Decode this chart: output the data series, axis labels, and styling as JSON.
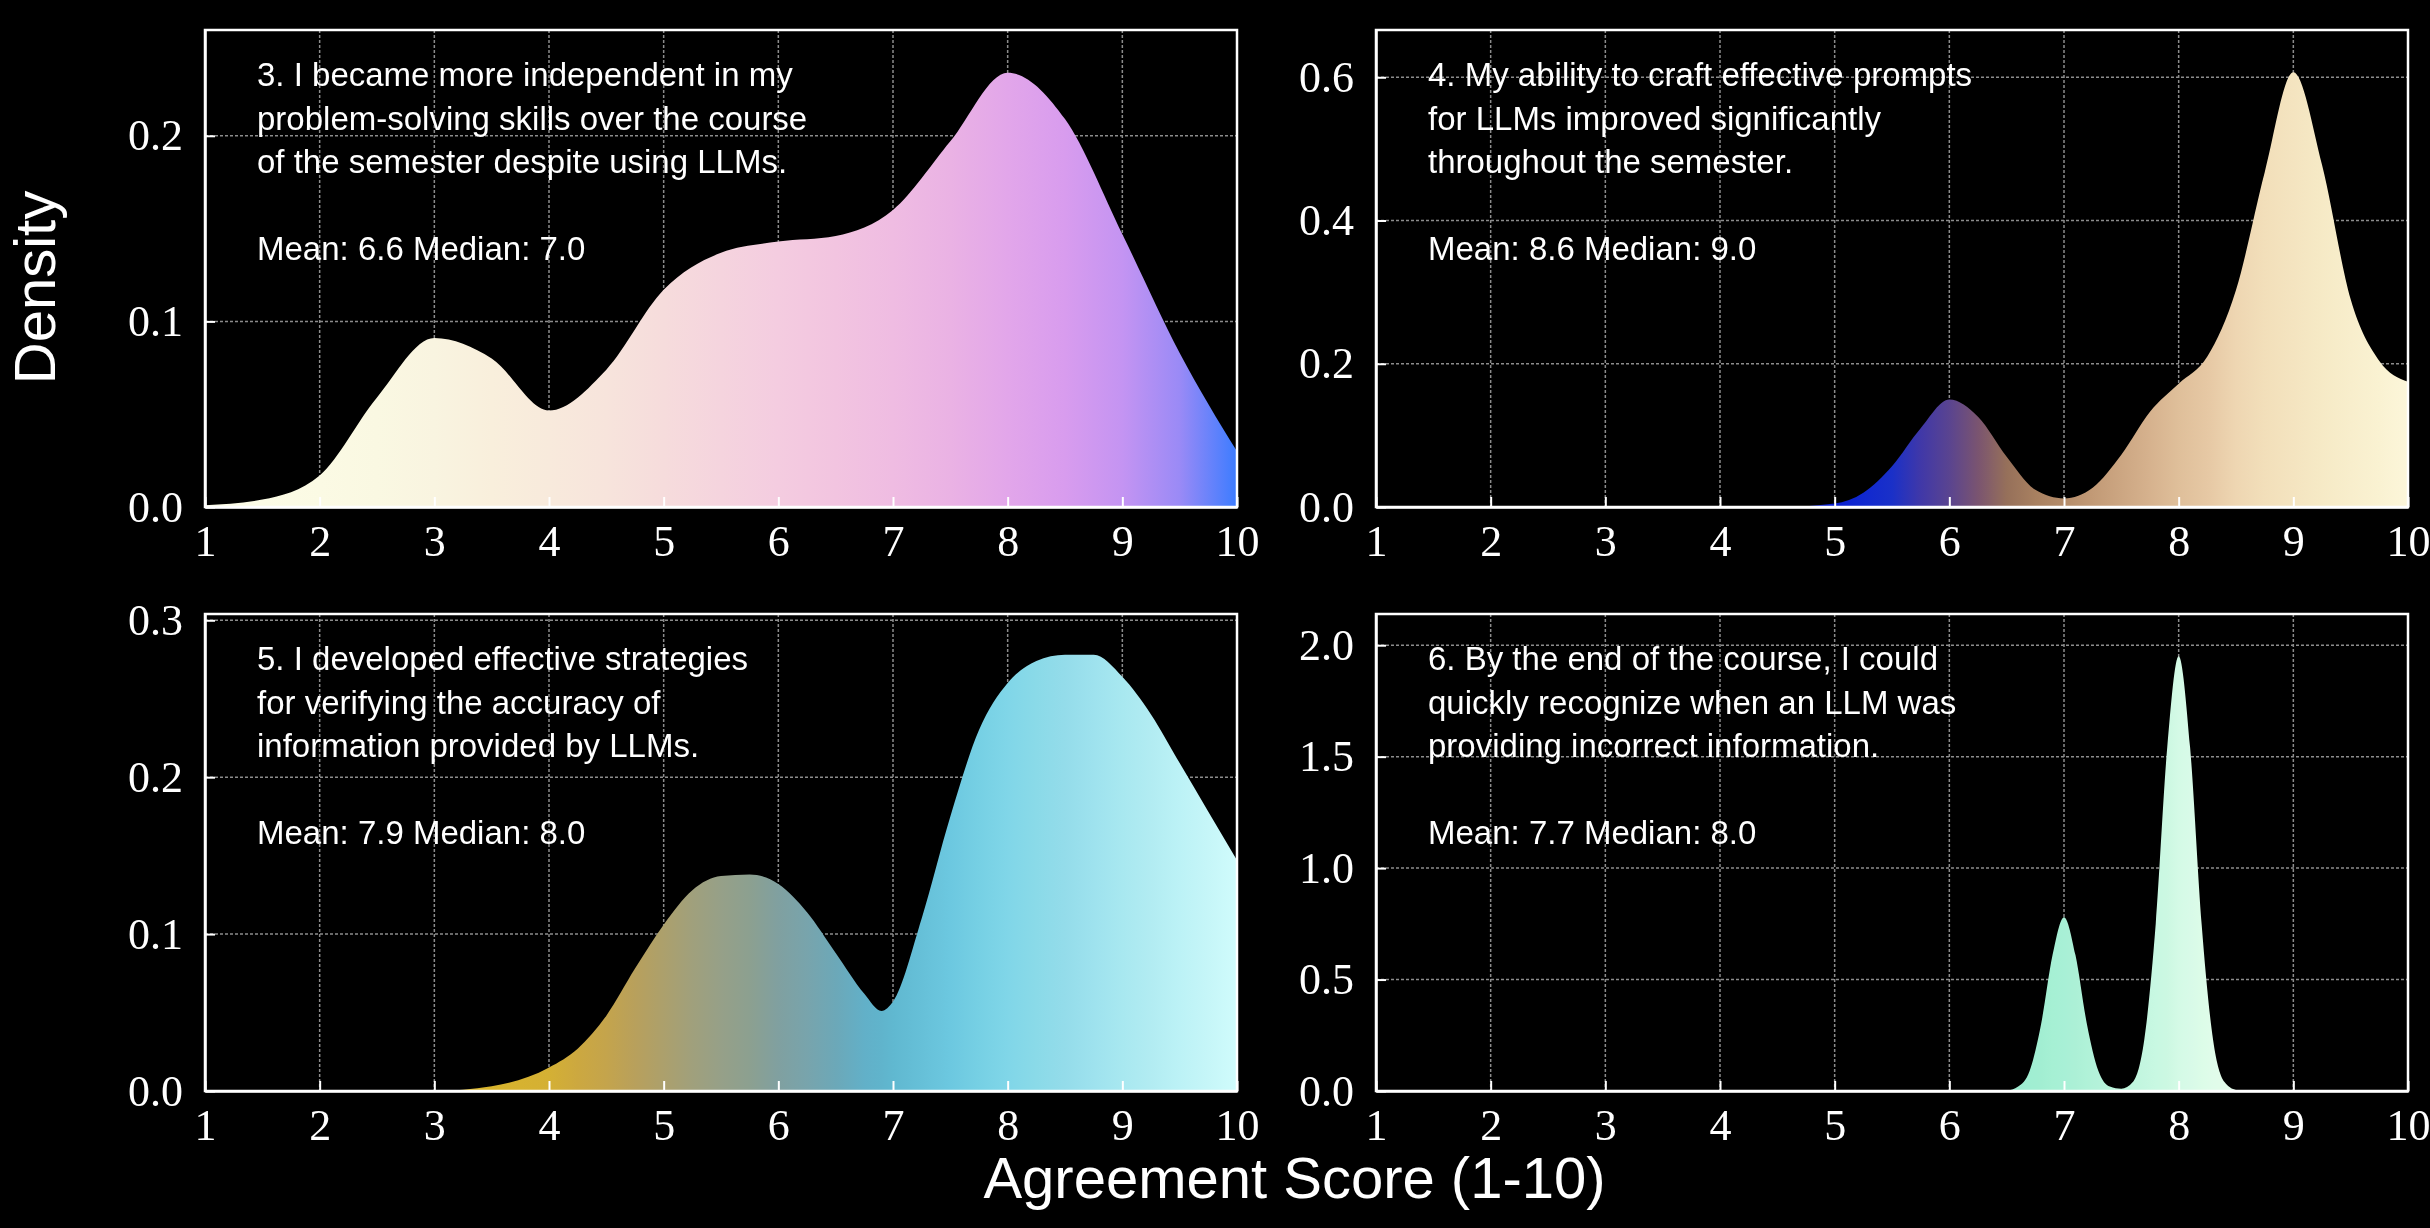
{
  "chart_data": [
    {
      "type": "area",
      "title": "3. I became more independent in my\nproblem-solving skills over the course\nof the semester despite using LLMs.",
      "annotations": [
        "Mean: 6.6 Median: 7.0"
      ],
      "ylabel": "Density",
      "x": [
        1,
        1.5,
        2,
        2.5,
        3,
        3.5,
        4,
        4.5,
        5,
        5.5,
        6,
        6.5,
        7,
        7.5,
        8,
        8.5,
        9,
        9.5,
        10
      ],
      "values": [
        0.001,
        0.004,
        0.017,
        0.059,
        0.091,
        0.08,
        0.052,
        0.074,
        0.117,
        0.137,
        0.143,
        0.146,
        0.16,
        0.197,
        0.234,
        0.209,
        0.147,
        0.083,
        0.03
      ],
      "colors": [
        "#fcfce8",
        "#fcfce6",
        "#fbfae4",
        "#faf8e2",
        "#f9f4e0",
        "#f9efdc",
        "#f8eadc",
        "#f7e4dc",
        "#f6dcdc",
        "#f5d4de",
        "#f4cce0",
        "#f2c4e0",
        "#efbce2",
        "#eab2e4",
        "#e2a6ea",
        "#d89cee",
        "#c494f2",
        "#9a8af6",
        "#3c7cff"
      ],
      "xlim": [
        1,
        10
      ],
      "xticks": [
        1,
        2,
        3,
        4,
        5,
        6,
        7,
        8,
        9,
        10
      ],
      "ylim": [
        0,
        0.257
      ],
      "yticks": [
        {
          "value": 0,
          "label": "0.0"
        },
        0.1,
        0.2
      ],
      "grid": true
    },
    {
      "type": "area",
      "title": "4. My ability to craft effective prompts\nfor LLMs improved significantly\nthroughout the semester.",
      "annotations": [
        "Mean: 8.6 Median: 9.0"
      ],
      "x": [
        1,
        4.5,
        5,
        5.25,
        5.5,
        5.75,
        6,
        6.25,
        6.5,
        6.75,
        7,
        7.25,
        7.5,
        7.75,
        8,
        8.25,
        8.5,
        8.75,
        9,
        9.25,
        9.5,
        9.75,
        10
      ],
      "values": [
        0,
        0,
        0.005,
        0.02,
        0.057,
        0.11,
        0.15,
        0.126,
        0.07,
        0.024,
        0.012,
        0.027,
        0.073,
        0.133,
        0.172,
        0.21,
        0.303,
        0.467,
        0.607,
        0.478,
        0.29,
        0.204,
        0.175
      ],
      "colors": [
        "#0a1ad0",
        "#0a1ad0",
        "#0a20d0",
        "#1028d0",
        "#1a30c8",
        "#4038a8",
        "#5a4490",
        "#7a5470",
        "#96705a",
        "#a88060",
        "#b48c6a",
        "#c29a76",
        "#cca682",
        "#d6b28e",
        "#dfbf9a",
        "#e6c8a4",
        "#eed6b2",
        "#f2dfba",
        "#f4e4c0",
        "#f6eac6",
        "#f8eecc",
        "#faf2d2",
        "#fcf6da"
      ],
      "xlim": [
        1,
        10
      ],
      "xticks": [
        1,
        2,
        3,
        4,
        5,
        6,
        7,
        8,
        9,
        10
      ],
      "ylim": [
        0,
        0.666
      ],
      "yticks": [
        {
          "value": 0,
          "label": "0.0"
        },
        0.2,
        0.4,
        0.6
      ],
      "grid": true
    },
    {
      "type": "area",
      "title": "5. I developed effective strategies\nfor verifying the accuracy of\ninformation provided by LLMs.",
      "annotations": [
        "Mean: 7.9 Median: 8.0"
      ],
      "xlabel": "Agreement Score (1-10)",
      "x": [
        1,
        3,
        3.5,
        4,
        4.25,
        4.5,
        4.75,
        5,
        5.25,
        5.5,
        5.75,
        6,
        6.25,
        6.5,
        6.75,
        6.9,
        7,
        7.25,
        7.5,
        7.75,
        8,
        8.25,
        8.5,
        8.75,
        9,
        9.25,
        9.5,
        9.75,
        10
      ],
      "values": [
        0,
        0,
        0.003,
        0.015,
        0.027,
        0.048,
        0.078,
        0.106,
        0.128,
        0.137,
        0.138,
        0.132,
        0.114,
        0.088,
        0.062,
        0.051,
        0.057,
        0.11,
        0.175,
        0.23,
        0.26,
        0.274,
        0.278,
        0.278,
        0.264,
        0.24,
        0.209,
        0.178,
        0.147
      ],
      "colors": [
        "#d8b428",
        "#d8b428",
        "#d8b42c",
        "#d4b034",
        "#cca840",
        "#c4a44c",
        "#b8a05c",
        "#aca06c",
        "#a0a07c",
        "#96a088",
        "#8ca090",
        "#80a0a0",
        "#78a4ac",
        "#6ca8b8",
        "#62b0c8",
        "#60b4cc",
        "#60b8d0",
        "#66c0d8",
        "#6cc8e0",
        "#76d0e4",
        "#80d6e8",
        "#8adae8",
        "#94dcea",
        "#9ee2ee",
        "#a8e8f0",
        "#b2ecf2",
        "#bcf2f6",
        "#c6f6f8",
        "#d0fcfc"
      ],
      "xlim": [
        1,
        10
      ],
      "xticks": [
        1,
        2,
        3,
        4,
        5,
        6,
        7,
        8,
        9,
        10
      ],
      "ylim": [
        0,
        0.304
      ],
      "yticks": [
        {
          "value": 0,
          "label": "0.0"
        },
        0.1,
        0.2,
        0.3
      ],
      "grid": true
    },
    {
      "type": "area",
      "title": "6. By the end of the course, I could\nquickly recognize when an LLM was\nproviding incorrect information.",
      "annotations": [
        "Mean: 7.7 Median: 8.0"
      ],
      "x": [
        1,
        6.4,
        6.5,
        6.6,
        6.7,
        6.8,
        6.9,
        7,
        7.1,
        7.2,
        7.3,
        7.4,
        7.5,
        7.6,
        7.7,
        7.8,
        7.9,
        8,
        8.1,
        8.2,
        8.3,
        8.4,
        8.5,
        8.6,
        10
      ],
      "values": [
        0,
        0,
        0.002,
        0.02,
        0.09,
        0.3,
        0.61,
        0.78,
        0.61,
        0.3,
        0.09,
        0.02,
        0.01,
        0.04,
        0.23,
        0.75,
        1.54,
        1.95,
        1.54,
        0.75,
        0.23,
        0.04,
        0.005,
        0,
        0
      ],
      "colors": [
        "#9cecd0",
        "#9cecd0",
        "#9cecd0",
        "#9eecd0",
        "#a0eed2",
        "#a2eed2",
        "#a6f0d4",
        "#a8f0d6",
        "#acf0d6",
        "#b0f2d8",
        "#b4f2da",
        "#b8f4da",
        "#bcf4dc",
        "#c0f6de",
        "#c4f6e0",
        "#c8f8e2",
        "#ccf8e2",
        "#d4fae6",
        "#d8fae8",
        "#dcfce8",
        "#e0fcea",
        "#e2fcea",
        "#e4fcec",
        "#e8fdee",
        "#f0fff4"
      ],
      "xlim": [
        1,
        10
      ],
      "xticks": [
        1,
        2,
        3,
        4,
        5,
        6,
        7,
        8,
        9,
        10
      ],
      "ylim": [
        0,
        2.14
      ],
      "yticks": [
        {
          "value": 0,
          "label": "0.0"
        },
        0.5,
        {
          "value": 1,
          "label": "1.0"
        },
        1.5,
        {
          "value": 2,
          "label": "2.0"
        }
      ],
      "grid": true
    }
  ]
}
